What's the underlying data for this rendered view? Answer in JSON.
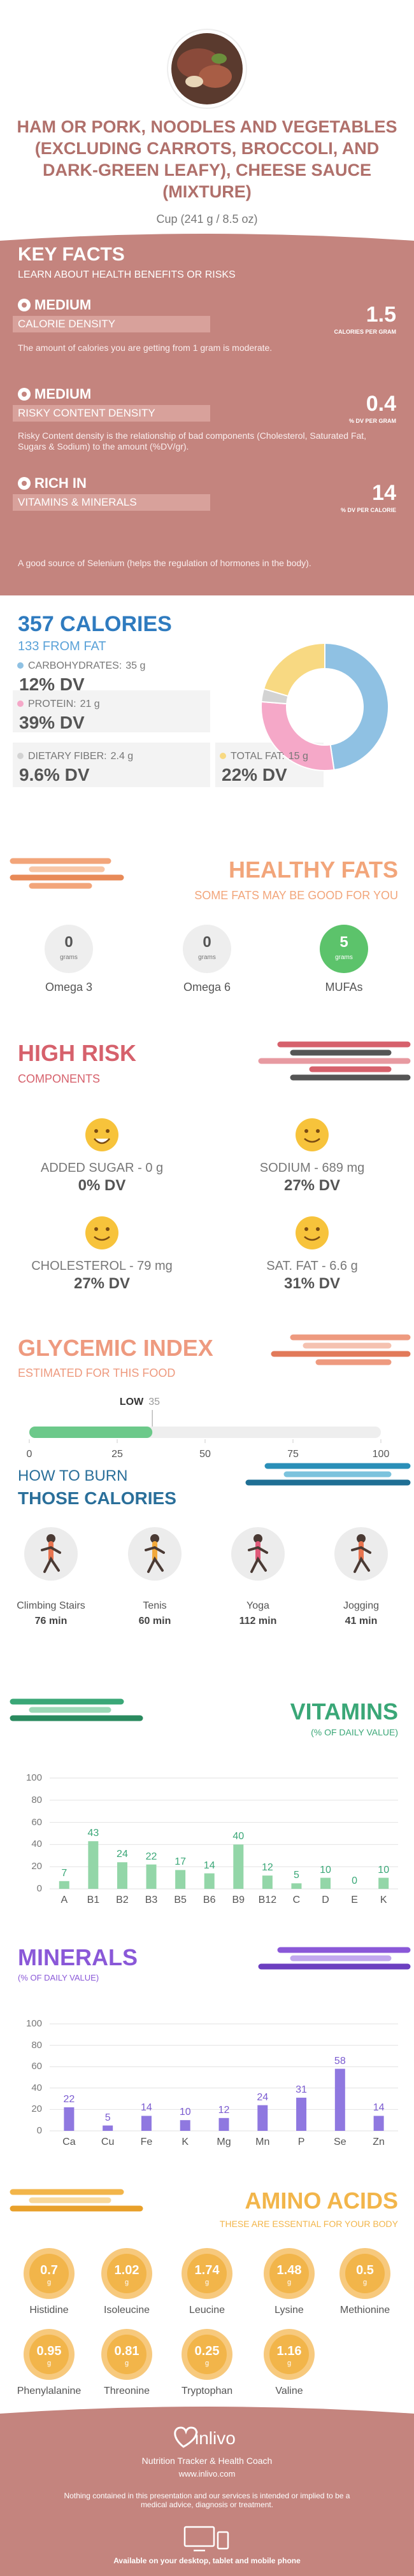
{
  "header": {
    "title": "HAM OR PORK, NOODLES AND VEGETABLES (EXCLUDING CARROTS, BROCCOLI, AND DARK-GREEN LEAFY), CHEESE SAUCE (MIXTURE)",
    "serving": "Cup (241 g / 8.5 oz)"
  },
  "key_facts": {
    "title": "KEY FACTS",
    "subtitle": "LEARN ABOUT HEALTH BENEFITS OR RISKS",
    "items": [
      {
        "level": "MEDIUM",
        "label": "CALORIE DENSITY",
        "value": 1.5,
        "unit": "CALORIES PER GRAM",
        "description": "The amount of calories you are getting from 1 gram is moderate."
      },
      {
        "level": "MEDIUM",
        "label": "RISKY CONTENT DENSITY",
        "value": 0.4,
        "unit": "% DV PER GRAM",
        "description": "Risky Content density is the relationship of bad components (Cholesterol, Saturated Fat, Sugars & Sodium) to the amount (%DV/gr)."
      },
      {
        "level": "RICH IN",
        "label": "VITAMINS & MINERALS",
        "value": 14,
        "unit": "% DV PER CALORIE",
        "description": "A good source of Selenium (helps the regulation of hormones in the body)."
      }
    ]
  },
  "calories": {
    "title": "357 CALORIES",
    "subtitle": "133 FROM FAT",
    "macros": [
      {
        "name": "CARBOHYDRATES:",
        "amount": {
          "value": 35,
          "label": "35 g"
        },
        "dv": "12% DV",
        "color": "#8fc1e3"
      },
      {
        "name": "PROTEIN:",
        "amount": {
          "value": 21,
          "label": "21 g"
        },
        "dv": "39% DV",
        "color": "#f5a8c8"
      },
      {
        "name": "DIETARY FIBER:",
        "amount": {
          "value": 2.4,
          "label": "2.4 g"
        },
        "dv": "9.6% DV",
        "color": "#d3d3d3"
      },
      {
        "name": "TOTAL FAT:",
        "amount": {
          "value": 15,
          "label": "15 g"
        },
        "dv": "22% DV",
        "color": "#f8d982"
      }
    ]
  },
  "healthy_fats": {
    "title": "HEALTHY FATS",
    "subtitle": "SOME FATS MAY BE GOOD FOR YOU",
    "items": [
      {
        "name": "Omega 3",
        "value": 0,
        "unit": "grams",
        "color": "#eeeeee"
      },
      {
        "name": "Omega 6",
        "value": 0,
        "unit": "grams",
        "color": "#eeeeee"
      },
      {
        "name": "MUFAs",
        "value": 5,
        "unit": "grams",
        "color": "#5cc36b"
      }
    ]
  },
  "high_risk": {
    "title": "HIGH RISK",
    "subtitle": "COMPONENTS",
    "items": [
      {
        "label": "ADDED SUGAR - 0 g",
        "dv": "0% DV"
      },
      {
        "label": "SODIUM - 689 mg",
        "dv": "27% DV"
      },
      {
        "label": "CHOLESTEROL - 79 mg",
        "dv": "27% DV"
      },
      {
        "label": "SAT. FAT - 6.6 g",
        "dv": "31% DV"
      }
    ]
  },
  "glycemic_index": {
    "title": "GLYCEMIC INDEX",
    "subtitle": "ESTIMATED FOR THIS FOOD",
    "level": "LOW",
    "value": 35,
    "range": [
      0,
      100
    ],
    "ticks": [
      0,
      25,
      50,
      75,
      100
    ],
    "color": "#6cc98a"
  },
  "burn": {
    "title": "HOW TO BURN",
    "subtitle": "THOSE CALORIES",
    "activities": [
      {
        "name": "Climbing Stairs",
        "time": "76 min"
      },
      {
        "name": "Tenis",
        "time": "60 min"
      },
      {
        "name": "Yoga",
        "time": "112 min"
      },
      {
        "name": "Jogging",
        "time": "41 min"
      }
    ]
  },
  "vitamins": {
    "title": "VITAMINS",
    "subtitle": "(% OF DAILY VALUE)",
    "chart": {
      "type": "bar",
      "categories": [
        "A",
        "B1",
        "B2",
        "B3",
        "B5",
        "B6",
        "B9",
        "B12",
        "C",
        "D",
        "E",
        "K"
      ],
      "values": [
        7,
        43,
        24,
        22,
        17,
        14,
        40,
        12,
        5,
        10,
        0,
        10
      ],
      "ylim": [
        0,
        100
      ],
      "yticks": [
        0,
        20,
        40,
        60,
        80,
        100
      ],
      "grid": true,
      "color": "#93d6a8"
    }
  },
  "minerals": {
    "title": "MINERALS",
    "subtitle": "(% OF DAILY VALUE)",
    "chart": {
      "type": "bar",
      "categories": [
        "Ca",
        "Cu",
        "Fe",
        "K",
        "Mg",
        "Mn",
        "P",
        "Se",
        "Zn"
      ],
      "values": [
        22,
        5,
        14,
        10,
        12,
        24,
        31,
        58,
        14
      ],
      "ylim": [
        0,
        100
      ],
      "yticks": [
        0,
        20,
        40,
        60,
        80,
        100
      ],
      "grid": true,
      "color": "#8f78e0"
    }
  },
  "amino_acids": {
    "title": "AMINO ACIDS",
    "subtitle": "THESE ARE ESSENTIAL FOR YOUR BODY",
    "items": [
      {
        "name": "Histidine",
        "value": 0.7,
        "unit": "g"
      },
      {
        "name": "Isoleucine",
        "value": 1.02,
        "unit": "g"
      },
      {
        "name": "Leucine",
        "value": 1.74,
        "unit": "g"
      },
      {
        "name": "Lysine",
        "value": 1.48,
        "unit": "g"
      },
      {
        "name": "Methionine",
        "value": 0.5,
        "unit": "g"
      },
      {
        "name": "Phenylalanine",
        "value": 0.95,
        "unit": "g"
      },
      {
        "name": "Threonine",
        "value": 0.81,
        "unit": "g"
      },
      {
        "name": "Tryptophan",
        "value": 0.25,
        "unit": "g"
      },
      {
        "name": "Valine",
        "value": 1.16,
        "unit": "g"
      }
    ]
  },
  "footer": {
    "brand": "inlivo",
    "tagline": "Nutrition Tracker & Health Coach",
    "url": "www.inlivo.com",
    "disclaimer": "Nothing contained in this presentation and our services is intended or implied to be a medical advice, diagnosis or treatment.",
    "availability": "Available on your desktop, tablet and mobile phone"
  }
}
